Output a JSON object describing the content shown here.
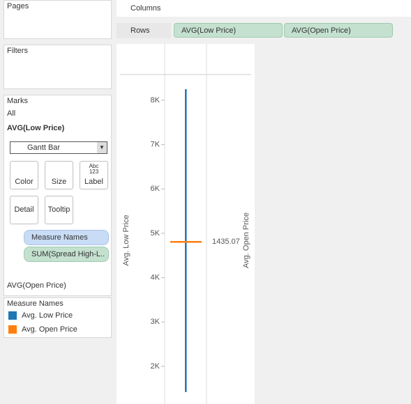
{
  "shelves": {
    "pages": "Pages",
    "filters": "Filters",
    "columns": "Columns",
    "rows": "Rows",
    "row_pills": [
      "AVG(Low Price)",
      "AVG(Open Price)"
    ]
  },
  "marks": {
    "title": "Marks",
    "all": "All",
    "cards": [
      "AVG(Low Price)",
      "AVG(Open Price)"
    ],
    "mark_type": "Gantt Bar",
    "buttons": [
      "Color",
      "Size",
      "Label",
      "Detail",
      "Tooltip"
    ],
    "label_icon": [
      "Abc",
      "123"
    ],
    "pills": [
      "Measure Names",
      "SUM(Spread High-L.."
    ]
  },
  "legend": {
    "title": "Measure Names"
  },
  "chart_data": {
    "type": "gantt",
    "ylabel": "Avg. Low Price",
    "y2label": "Avg. Open Price",
    "ylim": [
      1150,
      8580
    ],
    "y2lim": [
      1150,
      8580
    ],
    "yticks": [
      {
        "value": 2000,
        "label": "2K"
      },
      {
        "value": 3000,
        "label": "3K"
      },
      {
        "value": 4000,
        "label": "4K"
      },
      {
        "value": 5000,
        "label": "5K"
      },
      {
        "value": 6000,
        "label": "6K"
      },
      {
        "value": 7000,
        "label": "7K"
      },
      {
        "value": 8000,
        "label": "8K"
      }
    ],
    "series": [
      {
        "name": "Avg. Low Price",
        "color": "#1f77b4",
        "values": [
          1420
        ],
        "sizes": [
          6830
        ]
      },
      {
        "name": "Avg. Open Price",
        "color": "#ff7f0e",
        "values": [
          4810
        ],
        "axis": "y2"
      }
    ],
    "annotations": [
      "1435.07"
    ]
  }
}
